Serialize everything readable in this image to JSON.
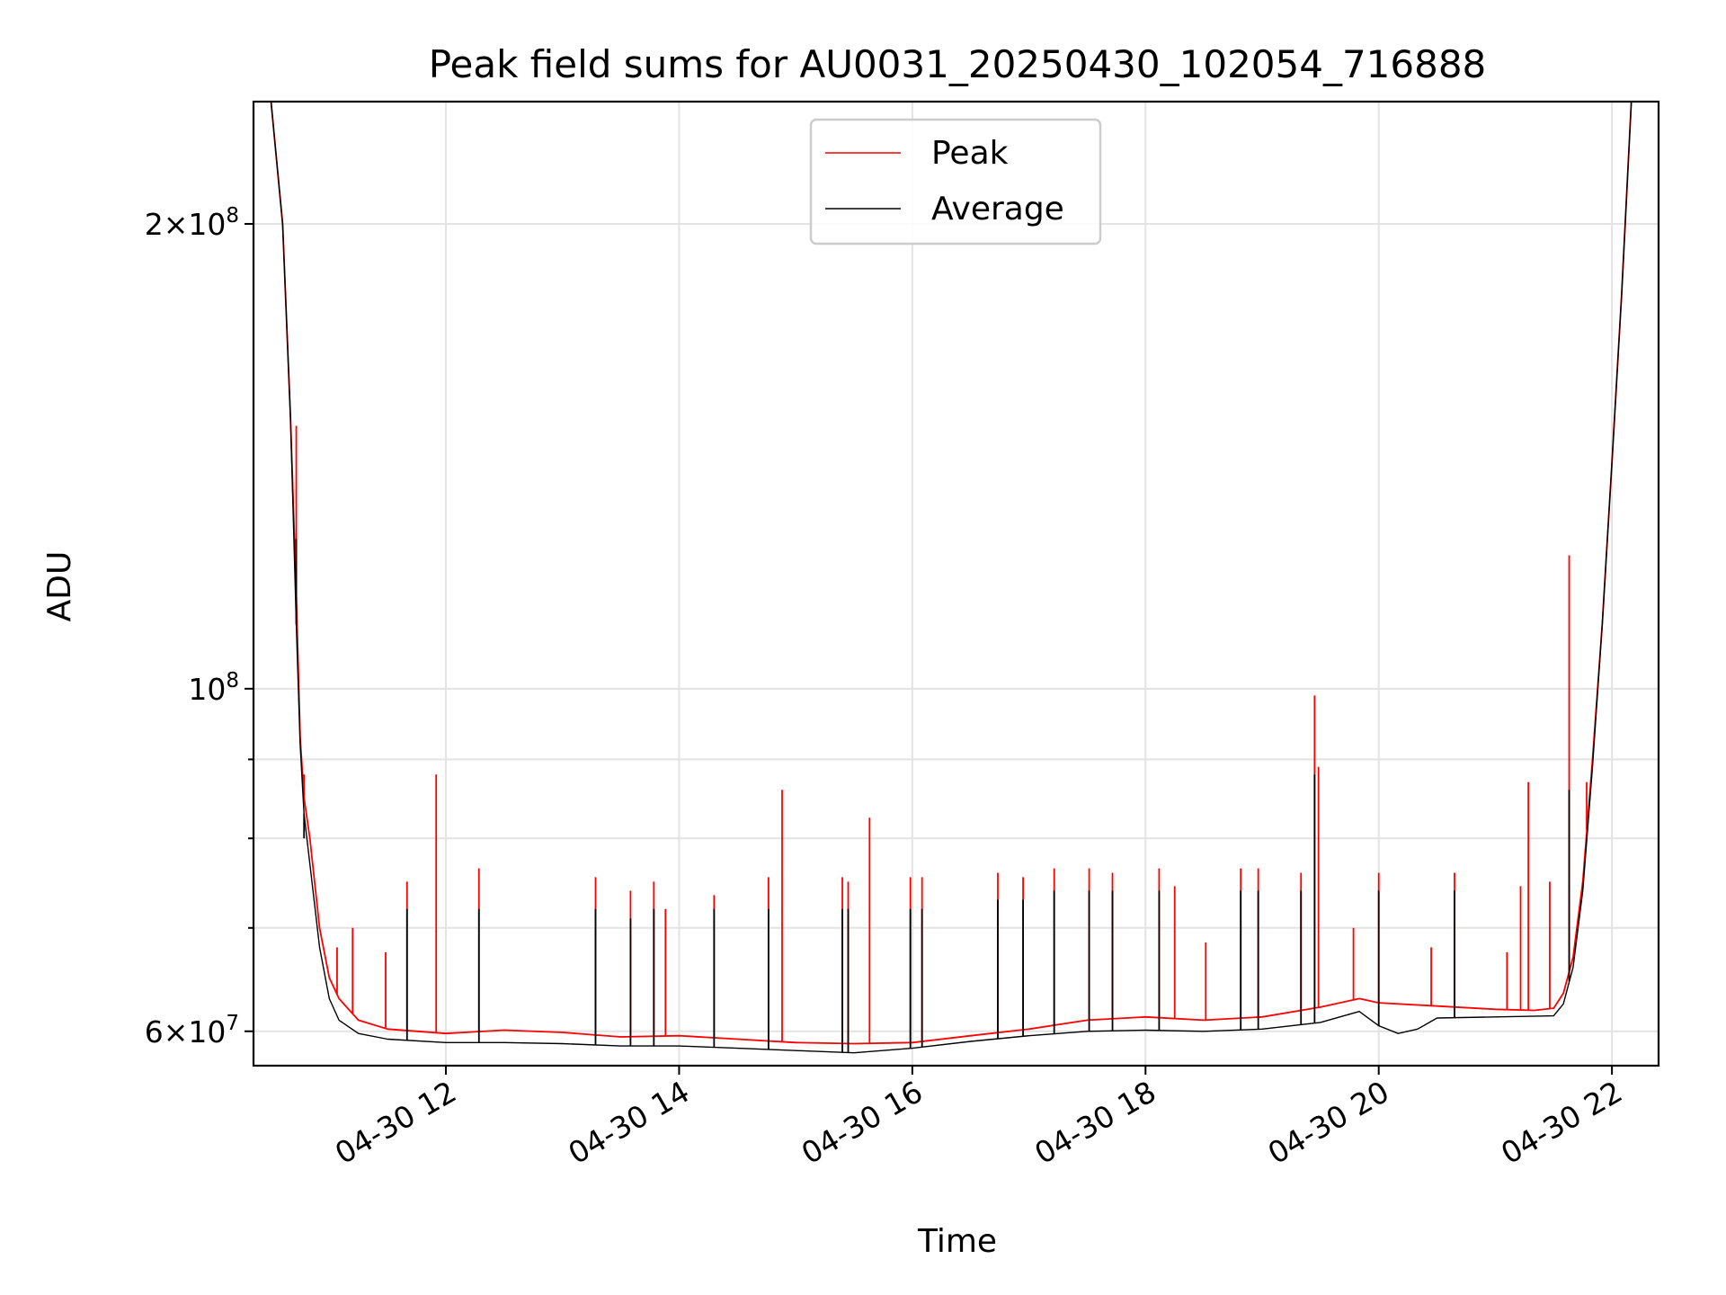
{
  "chart_data": {
    "type": "line",
    "title": "Peak field sums for AU0031_20250430_102054_716888",
    "xlabel": "Time",
    "ylabel": "ADU",
    "yscale": "log",
    "ylim": [
      57000000,
      240000000
    ],
    "xlim": [
      "2025-04-30T10:21",
      "2025-04-30T22:24"
    ],
    "grid": true,
    "legend_position": "upper center",
    "x_ticks": [
      {
        "t": "2025-04-30T12:00",
        "label": "04-30 12"
      },
      {
        "t": "2025-04-30T14:00",
        "label": "04-30 14"
      },
      {
        "t": "2025-04-30T16:00",
        "label": "04-30 16"
      },
      {
        "t": "2025-04-30T18:00",
        "label": "04-30 18"
      },
      {
        "t": "2025-04-30T20:00",
        "label": "04-30 20"
      },
      {
        "t": "2025-04-30T22:00",
        "label": "04-30 22"
      }
    ],
    "y_ticks": [
      {
        "v": 60000000,
        "mant": "6",
        "exp": "7"
      },
      {
        "v": 100000000,
        "mant": "",
        "exp": "8"
      },
      {
        "v": 200000000,
        "mant": "2",
        "exp": "8"
      }
    ],
    "y_minor_ticks": [
      70000000,
      80000000,
      90000000
    ],
    "series": [
      {
        "name": "Peak",
        "color": "#ff0000",
        "points": [
          [
            "2025-04-30T10:21",
            240000000
          ],
          [
            "2025-04-30T10:30",
            240000000
          ],
          [
            "2025-04-30T10:36",
            200000000
          ],
          [
            "2025-04-30T10:40",
            150000000
          ],
          [
            "2025-04-30T10:43",
            115000000
          ],
          [
            "2025-04-30T10:45",
            93000000
          ],
          [
            "2025-04-30T10:47",
            85000000
          ],
          [
            "2025-04-30T10:50",
            80000000
          ],
          [
            "2025-04-30T10:55",
            70000000
          ],
          [
            "2025-04-30T11:00",
            65000000
          ],
          [
            "2025-04-30T11:05",
            63000000
          ],
          [
            "2025-04-30T11:15",
            61000000
          ],
          [
            "2025-04-30T11:30",
            60200000
          ],
          [
            "2025-04-30T12:00",
            59800000
          ],
          [
            "2025-04-30T12:30",
            60100000
          ],
          [
            "2025-04-30T13:00",
            59900000
          ],
          [
            "2025-04-30T13:30",
            59500000
          ],
          [
            "2025-04-30T14:00",
            59600000
          ],
          [
            "2025-04-30T14:30",
            59300000
          ],
          [
            "2025-04-30T15:00",
            59000000
          ],
          [
            "2025-04-30T15:30",
            58900000
          ],
          [
            "2025-04-30T16:00",
            59000000
          ],
          [
            "2025-04-30T16:30",
            59600000
          ],
          [
            "2025-04-30T17:00",
            60200000
          ],
          [
            "2025-04-30T17:30",
            61000000
          ],
          [
            "2025-04-30T18:00",
            61300000
          ],
          [
            "2025-04-30T18:30",
            61000000
          ],
          [
            "2025-04-30T19:00",
            61300000
          ],
          [
            "2025-04-30T19:30",
            62200000
          ],
          [
            "2025-04-30T19:50",
            63000000
          ],
          [
            "2025-04-30T20:00",
            62600000
          ],
          [
            "2025-04-30T20:30",
            62300000
          ],
          [
            "2025-04-30T21:00",
            62000000
          ],
          [
            "2025-04-30T21:20",
            61900000
          ],
          [
            "2025-04-30T21:30",
            62100000
          ],
          [
            "2025-04-30T21:35",
            63500000
          ],
          [
            "2025-04-30T21:40",
            67000000
          ],
          [
            "2025-04-30T21:45",
            75000000
          ],
          [
            "2025-04-30T21:50",
            90000000
          ],
          [
            "2025-04-30T21:55",
            110000000
          ],
          [
            "2025-04-30T22:00",
            140000000
          ],
          [
            "2025-04-30T22:05",
            180000000
          ],
          [
            "2025-04-30T22:10",
            240000000
          ],
          [
            "2025-04-30T22:24",
            240000000
          ]
        ],
        "spikes": [
          [
            "2025-04-30T10:43",
            148000000
          ],
          [
            "2025-04-30T10:47",
            88000000
          ],
          [
            "2025-04-30T11:04",
            68000000
          ],
          [
            "2025-04-30T11:12",
            70000000
          ],
          [
            "2025-04-30T11:29",
            67500000
          ],
          [
            "2025-04-30T11:40",
            75000000
          ],
          [
            "2025-04-30T11:55",
            88000000
          ],
          [
            "2025-04-30T12:17",
            76500000
          ],
          [
            "2025-04-30T13:17",
            75500000
          ],
          [
            "2025-04-30T13:35",
            74000000
          ],
          [
            "2025-04-30T13:47",
            75000000
          ],
          [
            "2025-04-30T13:53",
            72000000
          ],
          [
            "2025-04-30T14:18",
            73500000
          ],
          [
            "2025-04-30T14:46",
            75500000
          ],
          [
            "2025-04-30T14:53",
            86000000
          ],
          [
            "2025-04-30T15:24",
            75500000
          ],
          [
            "2025-04-30T15:27",
            75000000
          ],
          [
            "2025-04-30T15:38",
            82500000
          ],
          [
            "2025-04-30T15:59",
            75500000
          ],
          [
            "2025-04-30T16:05",
            75500000
          ],
          [
            "2025-04-30T16:44",
            76000000
          ],
          [
            "2025-04-30T16:57",
            75500000
          ],
          [
            "2025-04-30T17:13",
            76500000
          ],
          [
            "2025-04-30T17:31",
            76500000
          ],
          [
            "2025-04-30T17:43",
            76000000
          ],
          [
            "2025-04-30T18:07",
            76500000
          ],
          [
            "2025-04-30T18:15",
            74500000
          ],
          [
            "2025-04-30T18:31",
            68500000
          ],
          [
            "2025-04-30T18:49",
            76500000
          ],
          [
            "2025-04-30T18:58",
            76500000
          ],
          [
            "2025-04-30T19:20",
            76000000
          ],
          [
            "2025-04-30T19:27",
            99000000
          ],
          [
            "2025-04-30T19:29",
            89000000
          ],
          [
            "2025-04-30T19:47",
            70000000
          ],
          [
            "2025-04-30T20:00",
            76000000
          ],
          [
            "2025-04-30T20:27",
            68000000
          ],
          [
            "2025-04-30T20:39",
            76000000
          ],
          [
            "2025-04-30T21:06",
            67500000
          ],
          [
            "2025-04-30T21:13",
            74500000
          ],
          [
            "2025-04-30T21:17",
            87000000
          ],
          [
            "2025-04-30T21:28",
            75000000
          ],
          [
            "2025-04-30T21:38",
            122000000
          ],
          [
            "2025-04-30T21:47",
            87000000
          ]
        ]
      },
      {
        "name": "Average",
        "color": "#000000",
        "points": [
          [
            "2025-04-30T10:21",
            240000000
          ],
          [
            "2025-04-30T10:30",
            240000000
          ],
          [
            "2025-04-30T10:36",
            200000000
          ],
          [
            "2025-04-30T10:40",
            150000000
          ],
          [
            "2025-04-30T10:43",
            110000000
          ],
          [
            "2025-04-30T10:45",
            92000000
          ],
          [
            "2025-04-30T10:47",
            83000000
          ],
          [
            "2025-04-30T10:50",
            77000000
          ],
          [
            "2025-04-30T10:55",
            68000000
          ],
          [
            "2025-04-30T11:00",
            63000000
          ],
          [
            "2025-04-30T11:05",
            61000000
          ],
          [
            "2025-04-30T11:15",
            59800000
          ],
          [
            "2025-04-30T11:30",
            59300000
          ],
          [
            "2025-04-30T12:00",
            59000000
          ],
          [
            "2025-04-30T12:30",
            59000000
          ],
          [
            "2025-04-30T13:00",
            58900000
          ],
          [
            "2025-04-30T13:30",
            58700000
          ],
          [
            "2025-04-30T14:00",
            58700000
          ],
          [
            "2025-04-30T14:30",
            58500000
          ],
          [
            "2025-04-30T15:00",
            58300000
          ],
          [
            "2025-04-30T15:30",
            58100000
          ],
          [
            "2025-04-30T16:00",
            58500000
          ],
          [
            "2025-04-30T16:30",
            59100000
          ],
          [
            "2025-04-30T17:00",
            59600000
          ],
          [
            "2025-04-30T17:30",
            60000000
          ],
          [
            "2025-04-30T18:00",
            60100000
          ],
          [
            "2025-04-30T18:30",
            60000000
          ],
          [
            "2025-04-30T19:00",
            60200000
          ],
          [
            "2025-04-30T19:30",
            60800000
          ],
          [
            "2025-04-30T19:50",
            61800000
          ],
          [
            "2025-04-30T20:00",
            60500000
          ],
          [
            "2025-04-30T20:10",
            59800000
          ],
          [
            "2025-04-30T20:20",
            60200000
          ],
          [
            "2025-04-30T20:30",
            61200000
          ],
          [
            "2025-04-30T21:00",
            61300000
          ],
          [
            "2025-04-30T21:30",
            61400000
          ],
          [
            "2025-04-30T21:35",
            62500000
          ],
          [
            "2025-04-30T21:40",
            66000000
          ],
          [
            "2025-04-30T21:45",
            74000000
          ],
          [
            "2025-04-30T21:50",
            89000000
          ],
          [
            "2025-04-30T21:55",
            110000000
          ],
          [
            "2025-04-30T22:00",
            140000000
          ],
          [
            "2025-04-30T22:05",
            180000000
          ],
          [
            "2025-04-30T22:10",
            240000000
          ],
          [
            "2025-04-30T22:24",
            240000000
          ]
        ],
        "spikes": [
          [
            "2025-04-30T10:43",
            125000000
          ],
          [
            "2025-04-30T10:47",
            80000000
          ],
          [
            "2025-04-30T11:40",
            72000000
          ],
          [
            "2025-04-30T12:17",
            72000000
          ],
          [
            "2025-04-30T13:17",
            72000000
          ],
          [
            "2025-04-30T13:35",
            71000000
          ],
          [
            "2025-04-30T13:47",
            72000000
          ],
          [
            "2025-04-30T14:18",
            72000000
          ],
          [
            "2025-04-30T14:46",
            72000000
          ],
          [
            "2025-04-30T15:24",
            72000000
          ],
          [
            "2025-04-30T15:27",
            72000000
          ],
          [
            "2025-04-30T15:59",
            72000000
          ],
          [
            "2025-04-30T16:05",
            72000000
          ],
          [
            "2025-04-30T16:44",
            73000000
          ],
          [
            "2025-04-30T16:57",
            73000000
          ],
          [
            "2025-04-30T17:13",
            74000000
          ],
          [
            "2025-04-30T17:31",
            74000000
          ],
          [
            "2025-04-30T17:43",
            74000000
          ],
          [
            "2025-04-30T18:07",
            74000000
          ],
          [
            "2025-04-30T18:49",
            74000000
          ],
          [
            "2025-04-30T18:58",
            74000000
          ],
          [
            "2025-04-30T19:20",
            74000000
          ],
          [
            "2025-04-30T19:27",
            88000000
          ],
          [
            "2025-04-30T20:00",
            74000000
          ],
          [
            "2025-04-30T20:39",
            74000000
          ],
          [
            "2025-04-30T21:38",
            86000000
          ]
        ]
      }
    ]
  }
}
